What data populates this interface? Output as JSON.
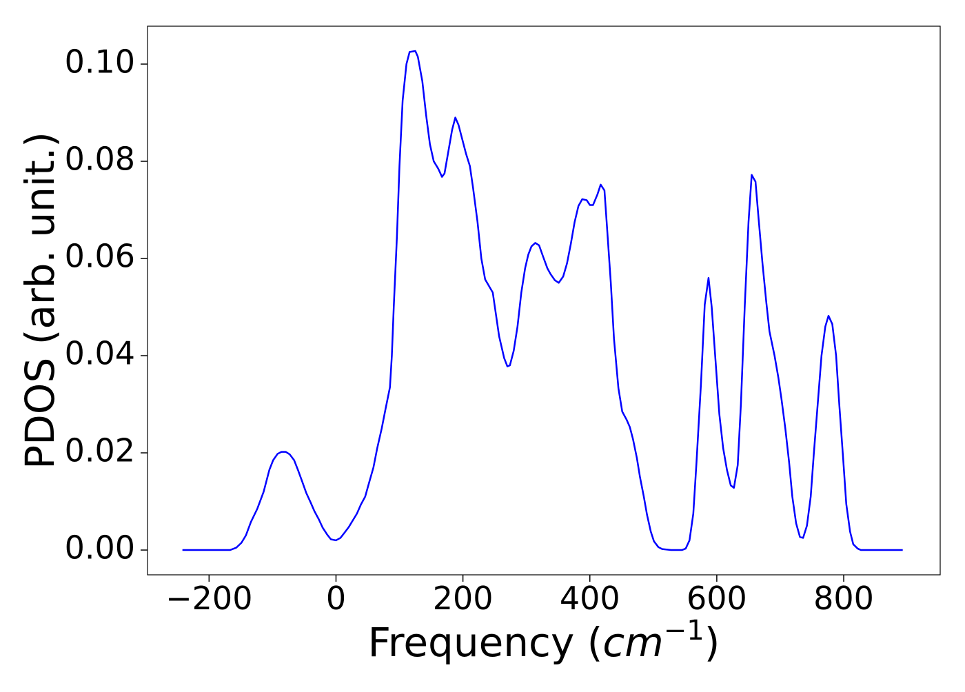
{
  "chart_data": {
    "type": "line",
    "xlabel": [
      "Frequency (",
      "cm",
      "−1",
      ")"
    ],
    "ylabel": "PDOS (arb. unit.)",
    "x": [
      -242,
      -167,
      -157,
      -149,
      -142,
      -134,
      -124,
      -114,
      -105,
      -99,
      -92,
      -86,
      -79,
      -73,
      -66,
      -60,
      -53,
      -47,
      -40,
      -34,
      -27,
      -21,
      -14,
      -8,
      0,
      7,
      13,
      20,
      26,
      33,
      39,
      46,
      52,
      59,
      65,
      72,
      78,
      85,
      88,
      91,
      96,
      100,
      105,
      111,
      116,
      125,
      129,
      136,
      142,
      148,
      154,
      161,
      167,
      171,
      177,
      183,
      188,
      193,
      200,
      205,
      211,
      216,
      223,
      229,
      235,
      247,
      257,
      265,
      270,
      274,
      280,
      286,
      292,
      298,
      303,
      308,
      314,
      320,
      326,
      333,
      338,
      345,
      351,
      358,
      364,
      370,
      376,
      382,
      388,
      395,
      400,
      405,
      412,
      417,
      423,
      427,
      433,
      438,
      445,
      451,
      458,
      463,
      468,
      474,
      479,
      485,
      490,
      496,
      501,
      508,
      514,
      528,
      545,
      551,
      557,
      563,
      568,
      575,
      581,
      587,
      592,
      598,
      604,
      610,
      616,
      622,
      627,
      633,
      638,
      644,
      650,
      655,
      661,
      666,
      672,
      678,
      683,
      691,
      697,
      702,
      708,
      714,
      719,
      725,
      731,
      736,
      742,
      748,
      753,
      759,
      765,
      771,
      776,
      782,
      788,
      793,
      799,
      804,
      810,
      815,
      822,
      827,
      893
    ],
    "series": [
      {
        "name": "PDOS",
        "color": "#0000ff",
        "values": [
          0,
          0,
          0.0005,
          0.0015,
          0.003,
          0.0058,
          0.0085,
          0.012,
          0.0165,
          0.0185,
          0.0198,
          0.0202,
          0.0202,
          0.0197,
          0.0185,
          0.0165,
          0.014,
          0.0118,
          0.0098,
          0.008,
          0.0063,
          0.0046,
          0.0032,
          0.0022,
          0.002,
          0.0025,
          0.0035,
          0.0047,
          0.006,
          0.0075,
          0.0093,
          0.011,
          0.0138,
          0.017,
          0.021,
          0.025,
          0.029,
          0.0335,
          0.04,
          0.05,
          0.0645,
          0.079,
          0.0925,
          0.1,
          0.1025,
          0.1027,
          0.1015,
          0.0965,
          0.0895,
          0.0835,
          0.08,
          0.0785,
          0.0768,
          0.0775,
          0.082,
          0.0865,
          0.089,
          0.0875,
          0.084,
          0.0815,
          0.079,
          0.0745,
          0.0675,
          0.06,
          0.0557,
          0.053,
          0.044,
          0.0395,
          0.0378,
          0.038,
          0.041,
          0.046,
          0.053,
          0.058,
          0.0608,
          0.0625,
          0.0632,
          0.0627,
          0.0605,
          0.058,
          0.0568,
          0.0555,
          0.055,
          0.0563,
          0.059,
          0.063,
          0.0675,
          0.0708,
          0.0722,
          0.072,
          0.071,
          0.071,
          0.0732,
          0.0752,
          0.074,
          0.0665,
          0.055,
          0.0435,
          0.0333,
          0.0285,
          0.0268,
          0.0253,
          0.0228,
          0.019,
          0.015,
          0.011,
          0.0073,
          0.0038,
          0.0018,
          0.0006,
          0.0002,
          0,
          0,
          0.0003,
          0.002,
          0.0075,
          0.018,
          0.034,
          0.0505,
          0.056,
          0.05,
          0.039,
          0.028,
          0.021,
          0.0165,
          0.0133,
          0.0128,
          0.0175,
          0.03,
          0.05,
          0.0675,
          0.0772,
          0.0758,
          0.068,
          0.059,
          0.051,
          0.045,
          0.04,
          0.0355,
          0.031,
          0.025,
          0.018,
          0.011,
          0.0055,
          0.0027,
          0.0025,
          0.005,
          0.011,
          0.02,
          0.03,
          0.04,
          0.046,
          0.0482,
          0.0465,
          0.04,
          0.03,
          0.019,
          0.0095,
          0.0038,
          0.0012,
          0.0003,
          0,
          0
        ]
      }
    ],
    "xlim": [
      -297,
      952
    ],
    "ylim": [
      -0.0051,
      0.1078
    ],
    "xticks": [
      {
        "value": -200,
        "label": "−200"
      },
      0,
      200,
      400,
      600,
      800
    ],
    "yticks": [
      {
        "value": 0,
        "label": "0.00"
      },
      {
        "value": 0.02,
        "label": "0.02"
      },
      {
        "value": 0.04,
        "label": "0.04"
      },
      {
        "value": 0.06,
        "label": "0.06"
      },
      {
        "value": 0.08,
        "label": "0.08"
      },
      {
        "value": 0.1,
        "label": "0.10"
      }
    ],
    "grid": false
  }
}
